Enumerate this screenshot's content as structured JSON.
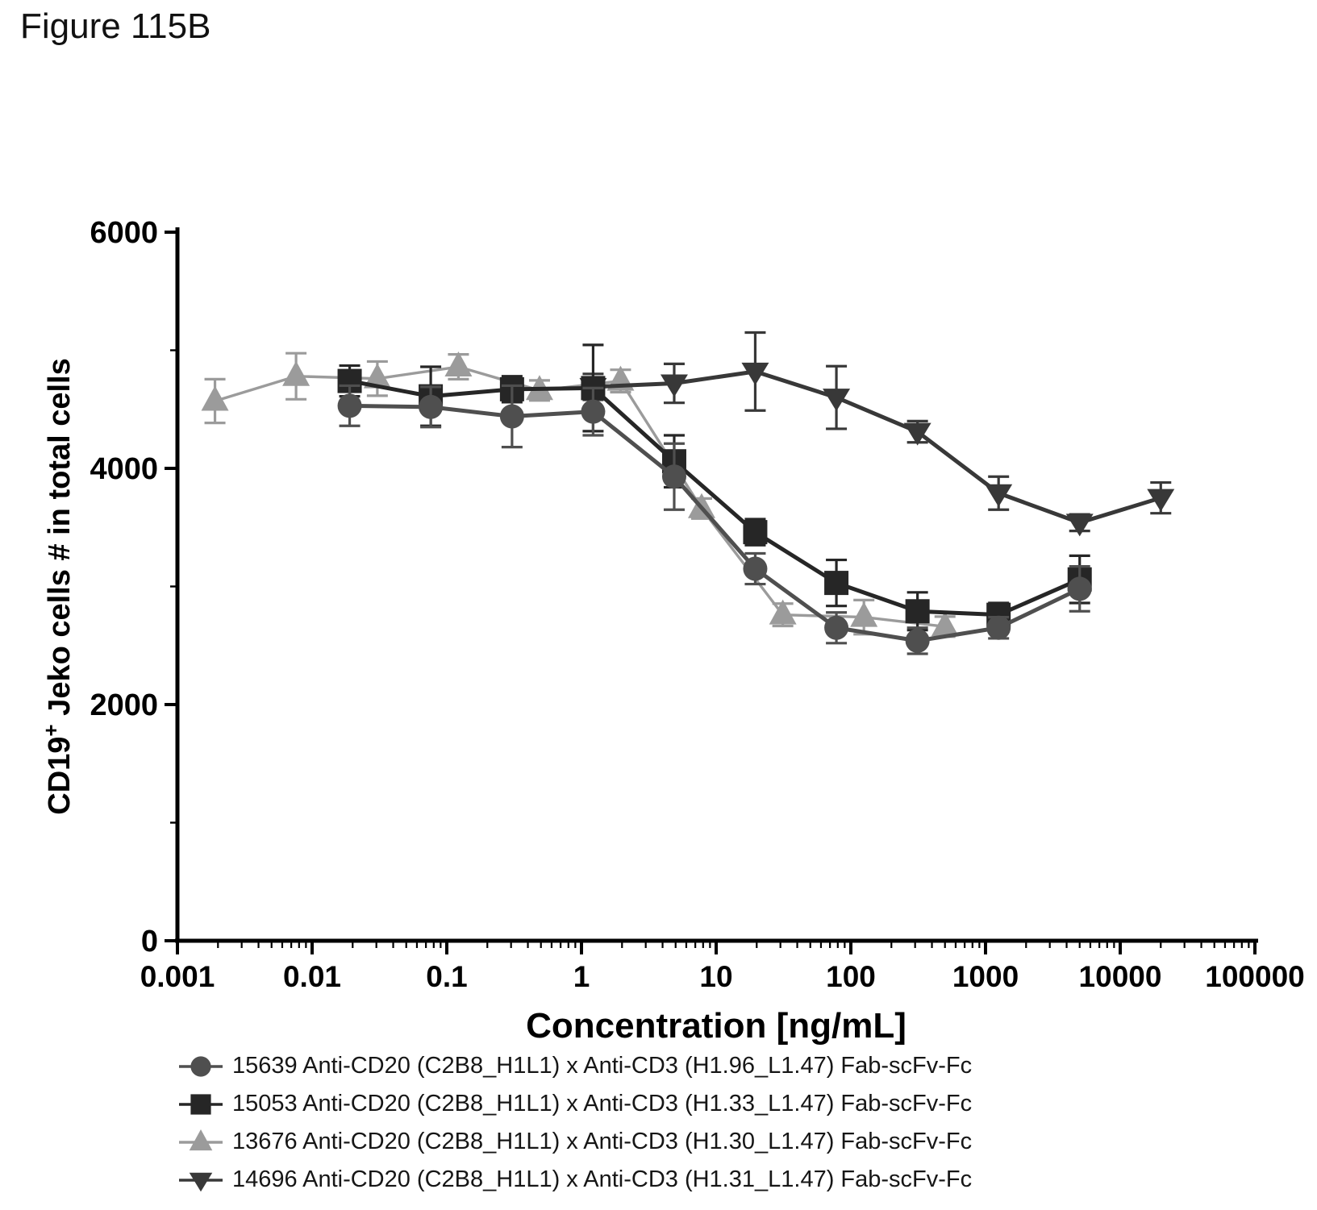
{
  "figure": {
    "title": "Figure 115B"
  },
  "chart_data": {
    "type": "line",
    "title": "",
    "x_axis": {
      "label": "Concentration [ng/mL]",
      "scale": "log",
      "min": 0.001,
      "max": 100000,
      "tick_labels": [
        "0.001",
        "0.01",
        "0.1",
        "1",
        "10",
        "100",
        "1000",
        "10000",
        "100000"
      ]
    },
    "y_axis": {
      "label_parts": {
        "base": "CD19",
        "sup": "+",
        "rest": " Jeko cells # in total cells"
      },
      "min": 0,
      "max": 6000,
      "major_ticks": [
        0,
        2000,
        4000,
        6000
      ],
      "minor_ticks": [
        1000,
        3000,
        5000
      ],
      "tick_labels": [
        "0",
        "2000",
        "4000",
        "6000"
      ]
    },
    "grid": "off",
    "legend_position": "bottom-left",
    "series": [
      {
        "id": "15639",
        "label": "15639 Anti-CD20 (C2B8_H1L1) x Anti-CD3 (H1.96_L1.47) Fab-scFv-Fc",
        "marker": "circle",
        "color": "#4f4f4f",
        "points_format": [
          "concentration_ng_per_mL",
          "cd19_jeko_cells",
          "error"
        ],
        "points": [
          [
            0.019,
            4530,
            170
          ],
          [
            0.076,
            4520,
            170
          ],
          [
            0.305,
            4440,
            260
          ],
          [
            1.22,
            4480,
            200
          ],
          [
            4.88,
            3930,
            280
          ],
          [
            19.5,
            3150,
            130
          ],
          [
            78.1,
            2650,
            130
          ],
          [
            312.5,
            2540,
            110
          ],
          [
            1250,
            2650,
            90
          ],
          [
            5000,
            2980,
            190
          ]
        ]
      },
      {
        "id": "15053",
        "label": "15053 Anti-CD20 (C2B8_H1L1) x Anti-CD3 (H1.33_L1.47) Fab-scFv-Fc",
        "marker": "square",
        "color": "#262626",
        "points_format": [
          "concentration_ng_per_mL",
          "cd19_jeko_cells",
          "error"
        ],
        "points": [
          [
            0.019,
            4740,
            130
          ],
          [
            0.076,
            4610,
            250
          ],
          [
            0.305,
            4670,
            110
          ],
          [
            1.22,
            4680,
            365
          ],
          [
            4.88,
            4060,
            220
          ],
          [
            19.5,
            3460,
            110
          ],
          [
            78.1,
            3030,
            195
          ],
          [
            312.5,
            2790,
            160
          ],
          [
            1250,
            2760,
            100
          ],
          [
            5000,
            3060,
            200
          ]
        ]
      },
      {
        "id": "13676",
        "label": "13676 Anti-CD20 (C2B8_H1L1) x Anti-CD3 (H1.30_L1.47) Fab-scFv-Fc",
        "marker": "triangle-up",
        "color": "#9b9b9b",
        "points_format": [
          "concentration_ng_per_mL",
          "cd19_jeko_cells",
          "error"
        ],
        "points": [
          [
            0.0019,
            4570,
            185
          ],
          [
            0.0076,
            4780,
            195
          ],
          [
            0.0305,
            4760,
            145
          ],
          [
            0.122,
            4860,
            105
          ],
          [
            0.488,
            4660,
            85
          ],
          [
            1.95,
            4740,
            95
          ],
          [
            7.8,
            3660,
            85
          ],
          [
            31.25,
            2760,
            95
          ],
          [
            125,
            2740,
            145
          ],
          [
            500,
            2660,
            85
          ]
        ]
      },
      {
        "id": "14696",
        "label": "14696 Anti-CD20 (C2B8_H1L1) x Anti-CD3 (H1.31_L1.47) Fab-scFv-Fc",
        "marker": "triangle-down",
        "color": "#383838",
        "points_format": [
          "concentration_ng_per_mL",
          "cd19_jeko_cells",
          "error"
        ],
        "points": [
          [
            1.22,
            4690,
            110
          ],
          [
            4.88,
            4720,
            165
          ],
          [
            19.5,
            4820,
            330
          ],
          [
            78.1,
            4600,
            265
          ],
          [
            312.5,
            4310,
            90
          ],
          [
            1250,
            3790,
            140
          ],
          [
            5000,
            3540,
            70
          ],
          [
            20000,
            3750,
            130
          ]
        ]
      }
    ]
  }
}
